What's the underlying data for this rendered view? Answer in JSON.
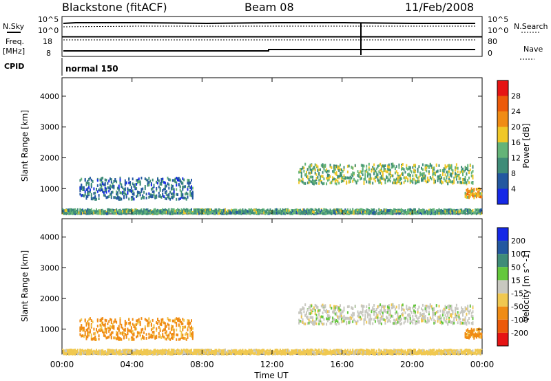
{
  "header": {
    "station": "Blackstone (fitACF)",
    "beam": "Beam 08",
    "date": "11/Feb/2008"
  },
  "panel_labels": {
    "nsky": "N.Sky",
    "nsearch": "N.Search",
    "freq_line1": "Freq.",
    "freq_line2": "[MHz]",
    "nave": "Nave",
    "cpid": "CPID",
    "cpid_value": "normal 150"
  },
  "ticks": {
    "noise_left_top": "10^5",
    "noise_left_bottom": "10^0",
    "noise_right_top": "10^5",
    "noise_right_bottom": "10^0",
    "freq_left_top": "18",
    "freq_left_bottom": "8",
    "nave_right_top": "80",
    "nave_right_bottom": "0"
  },
  "colors": {
    "power_scale": [
      "#1528e6",
      "#2358a0",
      "#3f8c78",
      "#64b478",
      "#f0c828",
      "#f08c14",
      "#ec5a0a",
      "#e61414"
    ],
    "velocity_scale": [
      "#e61414",
      "#ec5a0a",
      "#f08c14",
      "#f0c850",
      "#c8c8c0",
      "#64c83c",
      "#3f8c78",
      "#2358a0",
      "#1528e6"
    ]
  },
  "chart_data": [
    {
      "type": "heatmap",
      "panel": "power",
      "ylabel": "Slant Range [km]",
      "ylim": [
        180,
        4600
      ],
      "yticks": [
        "1000",
        "2000",
        "3000",
        "4000"
      ],
      "xticks": [
        "00:00",
        "04:00",
        "08:00",
        "12:00",
        "16:00",
        "20:00",
        "00:00"
      ],
      "xlim_hours": [
        0,
        24
      ],
      "colorbar": {
        "label": "Power [dB]",
        "range": [
          0,
          32
        ],
        "ticks": [
          "4",
          "8",
          "12",
          "16",
          "20",
          "24",
          "28"
        ]
      },
      "echo_regions": [
        {
          "t_start": 1.0,
          "t_end": 7.5,
          "range_low": 650,
          "range_high": 1350,
          "value": 8
        },
        {
          "t_start": 0.0,
          "t_end": 24.0,
          "range_low": 180,
          "range_high": 320,
          "value": 12
        },
        {
          "t_start": 13.5,
          "t_end": 23.5,
          "range_low": 1150,
          "range_high": 1800,
          "value": 14
        },
        {
          "t_start": 23.0,
          "t_end": 24.0,
          "range_low": 700,
          "range_high": 1000,
          "value": 20
        }
      ]
    },
    {
      "type": "heatmap",
      "panel": "velocity",
      "ylabel": "Slant Range [km]",
      "xlabel": "Time UT",
      "ylim": [
        180,
        4600
      ],
      "yticks": [
        "1000",
        "2000",
        "3000",
        "4000"
      ],
      "xticks": [
        "00:00",
        "04:00",
        "08:00",
        "12:00",
        "16:00",
        "20:00",
        "00:00"
      ],
      "xlim_hours": [
        0,
        24
      ],
      "colorbar": {
        "label": "Velocity [m s^-1]",
        "levels": [
          -200,
          -100,
          -50,
          -15,
          15,
          50,
          100,
          200
        ],
        "ticks": [
          "-200",
          "-100",
          "-50",
          "-15",
          "15",
          "50",
          "100",
          "200"
        ]
      },
      "echo_regions": [
        {
          "t_start": 1.0,
          "t_end": 7.5,
          "range_low": 650,
          "range_high": 1350,
          "value": -60
        },
        {
          "t_start": 0.0,
          "t_end": 24.0,
          "range_low": 180,
          "range_high": 320,
          "value": -30
        },
        {
          "t_start": 13.5,
          "t_end": 23.5,
          "range_low": 1150,
          "range_high": 1800,
          "value": 0
        },
        {
          "t_start": 23.0,
          "t_end": 24.0,
          "range_low": 700,
          "range_high": 1000,
          "value": -60
        }
      ]
    }
  ]
}
